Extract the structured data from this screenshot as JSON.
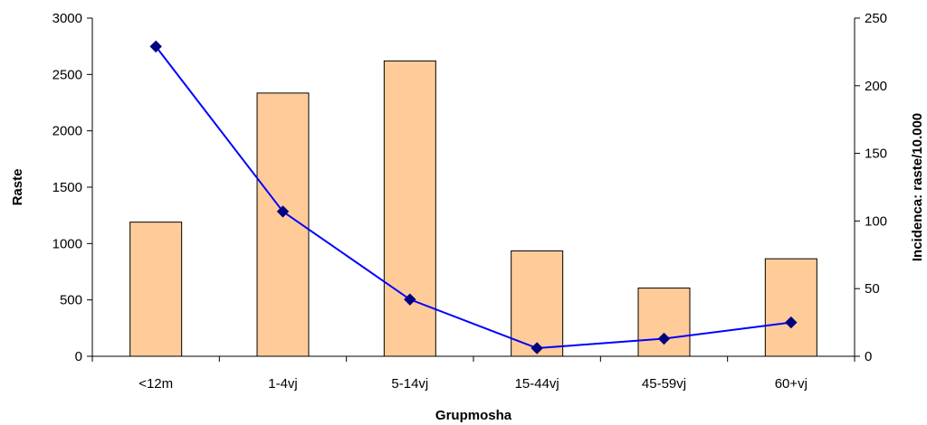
{
  "chart_data": {
    "type": "bar",
    "categories": [
      "<12m",
      "1-4vj",
      "5-14vj",
      "15-44vj",
      "45-59vj",
      "60+vj"
    ],
    "series": [
      {
        "type": "bar",
        "axis": "left",
        "values": [
          1190,
          2335,
          2620,
          935,
          605,
          865
        ],
        "color": "#FFCC99",
        "edge_color": "#000000"
      },
      {
        "type": "line",
        "axis": "right",
        "values": [
          229,
          107,
          42,
          6,
          13,
          25
        ],
        "color": "#0000FF",
        "marker": "diamond",
        "marker_color": "#000080"
      }
    ],
    "xlabel": "Grupmosha",
    "ylabel": "Raste",
    "y2label": "Incidenca: raste/10.000",
    "ylim": [
      0,
      3000
    ],
    "y2lim": [
      0,
      250
    ],
    "yticks": [
      "0",
      "500",
      "1000",
      "1500",
      "2000",
      "2500",
      "3000"
    ],
    "y2ticks": [
      "0",
      "50",
      "100",
      "150",
      "200",
      "250"
    ],
    "grid": false,
    "legend": "none"
  }
}
